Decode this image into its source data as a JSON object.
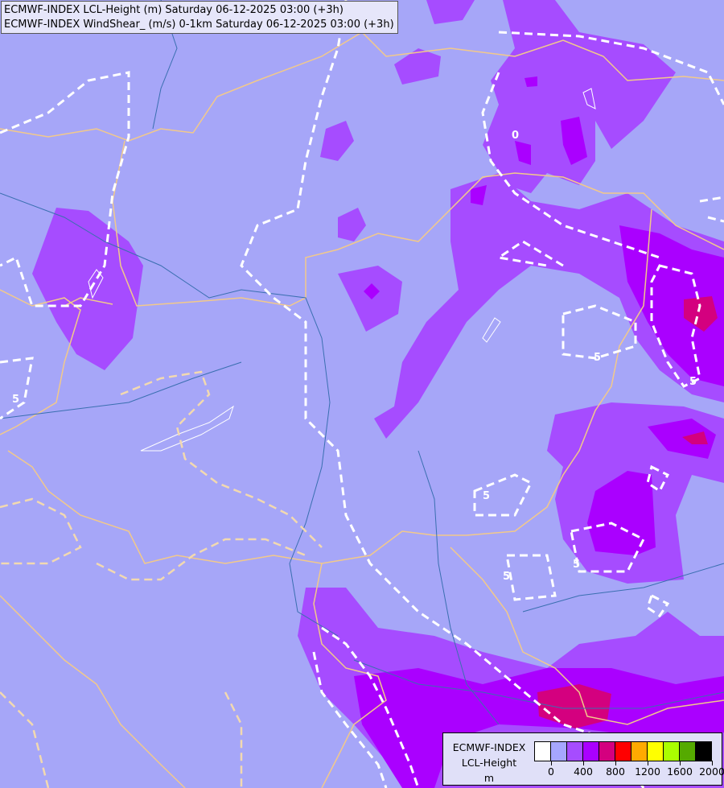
{
  "header": {
    "line1": "ECMWF-INDEX LCL-Height (m) Saturday 06-12-2025 03:00 (+3h)",
    "line2": "ECMWF-INDEX WindShear_ (m/s) 0-1km Saturday 06-12-2025 03:00 (+3h)"
  },
  "map": {
    "background_color": "#a6a6f8",
    "border_color": "#f2c98a",
    "river_color": "#3a6fb0",
    "contour_color": "#ffffff",
    "contour_labels": [
      "5",
      "5",
      "5",
      "5",
      "5",
      "5",
      "0"
    ]
  },
  "legend": {
    "title_lines": [
      "ECMWF-INDEX",
      "LCL-Height",
      "m"
    ],
    "colors": [
      "#ffffff",
      "#a6a6ff",
      "#a64cff",
      "#aa00ff",
      "#d4007f",
      "#ff0000",
      "#ffaa00",
      "#ffff00",
      "#aaff00",
      "#55aa00",
      "#000000"
    ],
    "tick_labels": [
      "0",
      "400",
      "800",
      "1200",
      "1600",
      "2000"
    ]
  }
}
